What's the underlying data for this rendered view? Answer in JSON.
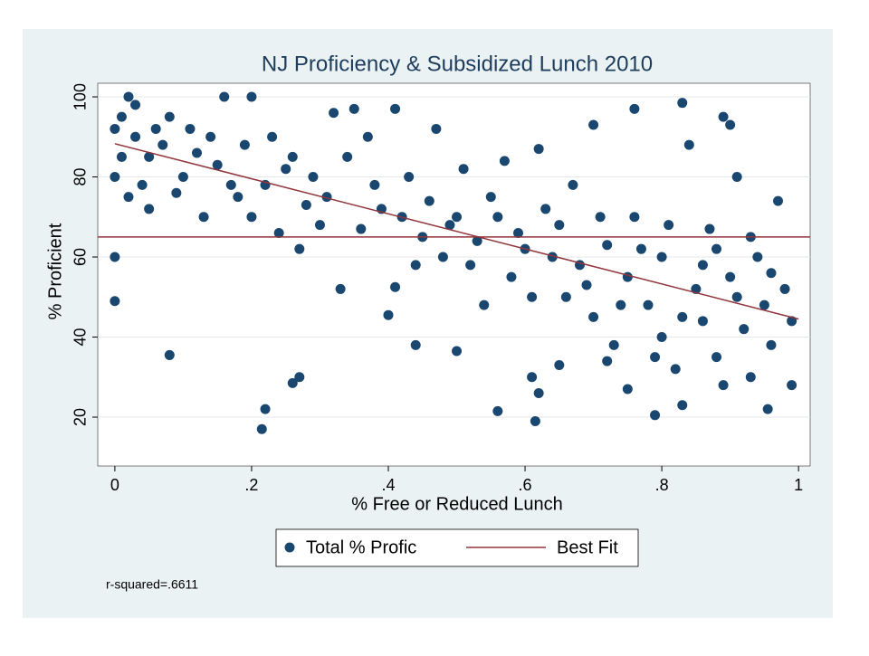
{
  "chart_data": {
    "type": "scatter",
    "title": "NJ Proficiency & Subsidized Lunch 2010",
    "x_label": "% Free or Reduced Lunch",
    "y_label": "% Proficient",
    "note": "r-squared=.6611",
    "xlim": [
      -0.025,
      1.017
    ],
    "ylim": [
      7.8,
      103.4
    ],
    "xticks": [
      0,
      {
        "value": 0.2,
        "label": ".2"
      },
      {
        "value": 0.4,
        "label": ".4"
      },
      {
        "value": 0.6,
        "label": ".6"
      },
      {
        "value": 0.8,
        "label": ".8"
      },
      1
    ],
    "yticks": [
      20,
      40,
      60,
      80,
      100
    ],
    "grid": true,
    "hline": 65,
    "hline_color": "#90353b",
    "series": [
      {
        "name": "Total % Profic",
        "type": "scatter",
        "color": "#1a476f",
        "x": [
          0,
          0,
          0.08,
          0.215,
          0.22,
          0.26,
          0.27,
          0.33,
          0.4,
          0.41,
          0.44,
          0.5,
          0.56,
          0.615,
          0.61,
          0.62,
          0.65,
          0.7,
          0.76,
          0.83,
          0.89,
          0.9,
          0.99,
          0.955,
          0.79,
          0.83,
          0.72,
          0.75,
          0.01,
          0.02,
          0.03,
          0.05,
          0.06,
          0.04,
          0.07,
          0.1,
          0.12,
          0.15,
          0.16,
          0.2,
          0.18,
          0.2,
          0.22,
          0.25,
          0.28,
          0.3,
          0.32,
          0.35,
          0.38,
          0.41,
          0.42,
          0.45,
          0.47,
          0.48,
          0.5,
          0.52,
          0.55,
          0.57,
          0.58,
          0.6,
          0.62,
          0.65,
          0.66,
          0.68,
          0.7,
          0.72,
          0.73,
          0.75,
          0.76,
          0.78,
          0.8,
          0.8,
          0.82,
          0.84,
          0.85,
          0.86,
          0.87,
          0.88,
          0.9,
          0.91,
          0.92,
          0.93,
          0.94,
          0.95,
          0.96,
          0.97,
          0.98,
          0.99,
          0.01,
          0.02,
          0,
          0,
          0.03,
          0.05,
          0.08,
          0.09,
          0.11,
          0.13,
          0.14,
          0.17,
          0.19,
          0.23,
          0.24,
          0.26,
          0.27,
          0.29,
          0.31,
          0.34,
          0.36,
          0.37,
          0.39,
          0.43,
          0.44,
          0.46,
          0.49,
          0.51,
          0.53,
          0.54,
          0.56,
          0.59,
          0.61,
          0.63,
          0.64,
          0.67,
          0.69,
          0.71,
          0.74,
          0.77,
          0.79,
          0.81,
          0.83,
          0.86,
          0.88,
          0.89,
          0.91,
          0.93,
          0.96
        ],
        "values": [
          60,
          49,
          35.5,
          17,
          22,
          28.5,
          30,
          52,
          45.5,
          52.5,
          38,
          36.5,
          21.5,
          19,
          30,
          26,
          33,
          93,
          97,
          98.5,
          95,
          93,
          28,
          22,
          20.5,
          23,
          34,
          27,
          95,
          100,
          90,
          85,
          92,
          78,
          88,
          80,
          86,
          83,
          100,
          100,
          75,
          70,
          78,
          82,
          73,
          68,
          96,
          97,
          78,
          97,
          70,
          65,
          92,
          60,
          70,
          58,
          75,
          84,
          55,
          62,
          87,
          68,
          50,
          58,
          45,
          63,
          38,
          55,
          70,
          48,
          60,
          40,
          32,
          88,
          52,
          44,
          67,
          35,
          55,
          80,
          42,
          30,
          60,
          48,
          38,
          74,
          52,
          44,
          85,
          75,
          92,
          80,
          98,
          72,
          95,
          76,
          92,
          70,
          90,
          78,
          88,
          90,
          66,
          85,
          62,
          80,
          75,
          85,
          67,
          90,
          72,
          80,
          58,
          74,
          68,
          82,
          64,
          48,
          70,
          66,
          50,
          72,
          60,
          78,
          53,
          70,
          48,
          62,
          35,
          68,
          45,
          58,
          62,
          28,
          50,
          65,
          56
        ]
      },
      {
        "name": "Best Fit",
        "type": "line",
        "color": "#90353b",
        "x": [
          0,
          1
        ],
        "values": [
          88.3,
          44.5
        ]
      }
    ]
  }
}
